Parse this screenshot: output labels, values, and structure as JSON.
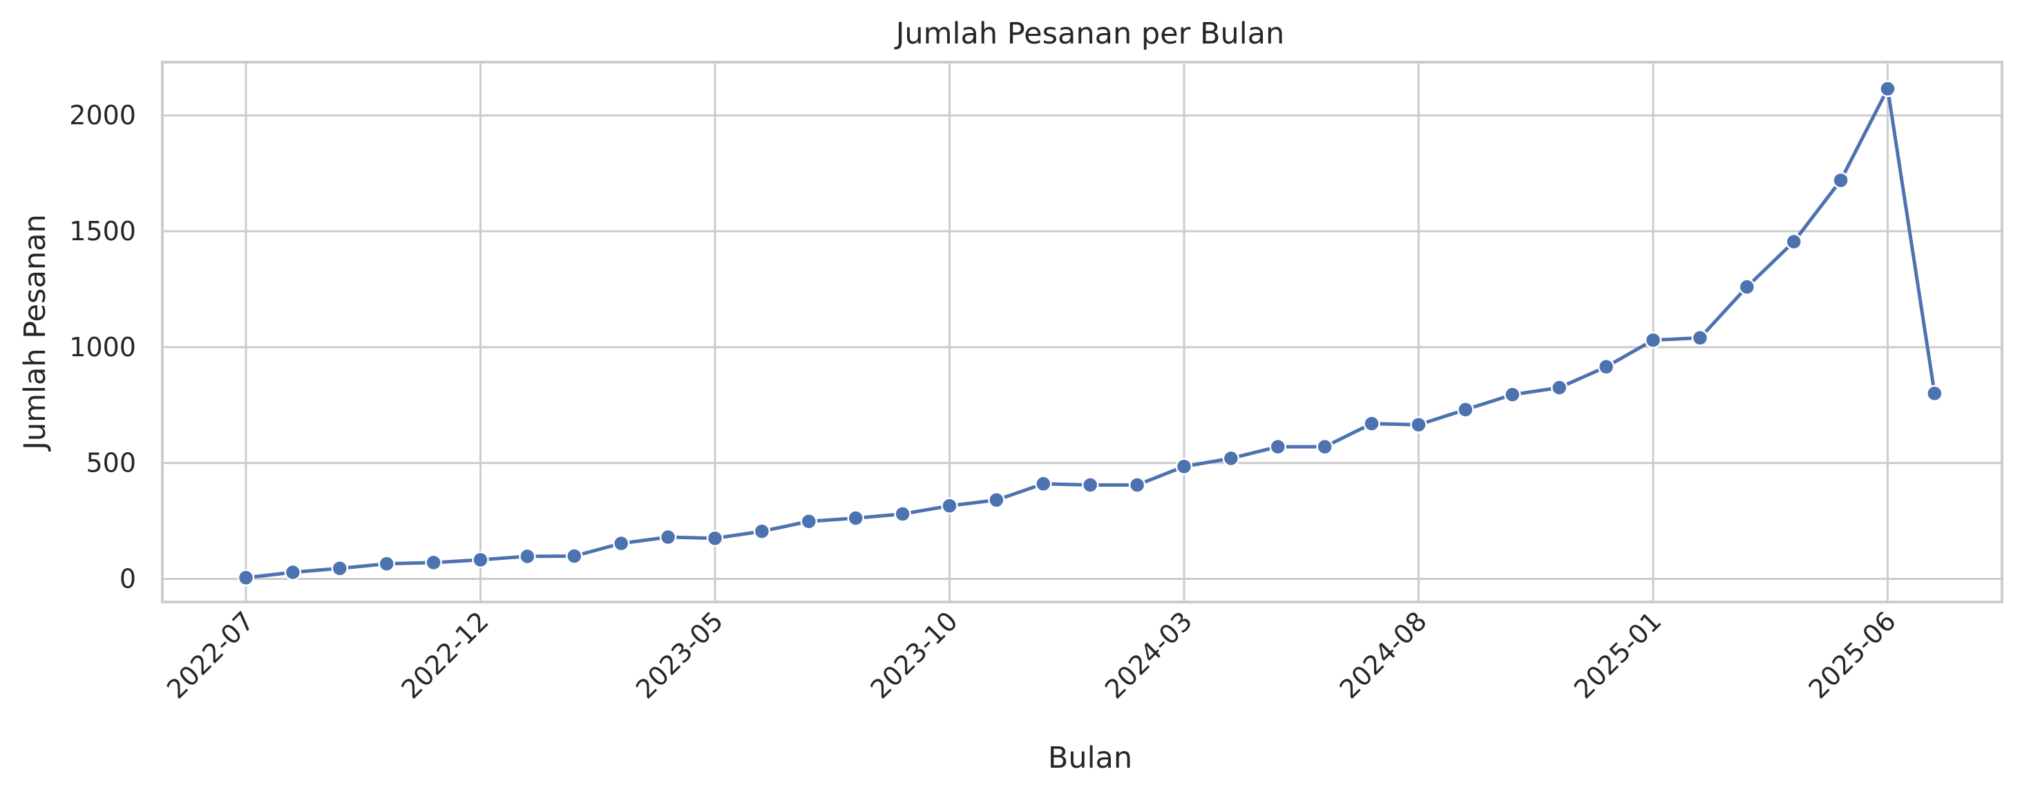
{
  "chart_data": {
    "type": "line",
    "title": "Jumlah Pesanan per Bulan",
    "xlabel": "Bulan",
    "ylabel": "Jumlah Pesanan",
    "grid": true,
    "ylim": [
      -100,
      2230
    ],
    "y_ticks": [
      0,
      500,
      1000,
      1500,
      2000
    ],
    "x_ticks": [
      "2022-07",
      "2022-12",
      "2023-05",
      "2023-10",
      "2024-03",
      "2024-08",
      "2025-01",
      "2025-06"
    ],
    "color": "#4c72b0",
    "x": [
      "2022-07",
      "2022-08",
      "2022-09",
      "2022-10",
      "2022-11",
      "2022-12",
      "2023-01",
      "2023-02",
      "2023-03",
      "2023-04",
      "2023-05",
      "2023-06",
      "2023-07",
      "2023-08",
      "2023-09",
      "2023-10",
      "2023-11",
      "2023-12",
      "2024-01",
      "2024-02",
      "2024-03",
      "2024-04",
      "2024-05",
      "2024-06",
      "2024-07",
      "2024-08",
      "2024-09",
      "2024-10",
      "2024-11",
      "2024-12",
      "2025-01",
      "2025-02",
      "2025-03",
      "2025-04",
      "2025-05",
      "2025-06",
      "2025-07"
    ],
    "values": [
      5,
      28,
      45,
      65,
      70,
      82,
      97,
      98,
      153,
      180,
      175,
      205,
      248,
      262,
      280,
      315,
      340,
      410,
      405,
      405,
      485,
      520,
      570,
      570,
      670,
      665,
      730,
      795,
      825,
      915,
      1030,
      1040,
      1260,
      1455,
      1720,
      2115,
      800
    ]
  }
}
